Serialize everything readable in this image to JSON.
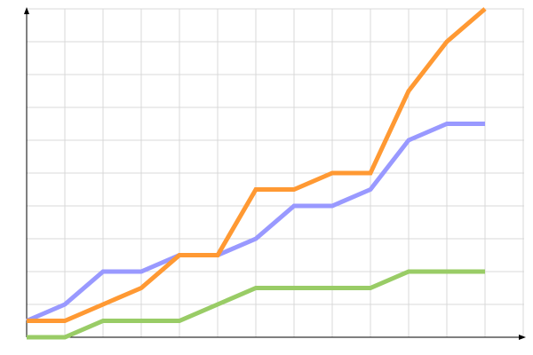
{
  "chart_data": {
    "type": "line",
    "title": "",
    "xlabel": "",
    "ylabel": "",
    "x": [
      0,
      1,
      2,
      3,
      4,
      5,
      6,
      7,
      8,
      9,
      10,
      11,
      12
    ],
    "xlim": [
      0,
      13
    ],
    "ylim": [
      0,
      10
    ],
    "grid": true,
    "legend": "none",
    "series": [
      {
        "color": "#9999ff",
        "values": [
          0.5,
          1,
          2,
          2,
          2.5,
          2.5,
          3,
          4,
          4,
          4.5,
          6,
          6.5,
          6.5
        ]
      },
      {
        "color": "#ff9933",
        "values": [
          0.5,
          0.5,
          1,
          1.5,
          2.5,
          2.5,
          4.5,
          4.5,
          5,
          5,
          7.5,
          9,
          10
        ]
      },
      {
        "color": "#99cc66",
        "values": [
          0,
          0,
          0.5,
          0.5,
          0.5,
          1,
          1.5,
          1.5,
          1.5,
          1.5,
          2,
          2,
          2
        ]
      }
    ]
  }
}
